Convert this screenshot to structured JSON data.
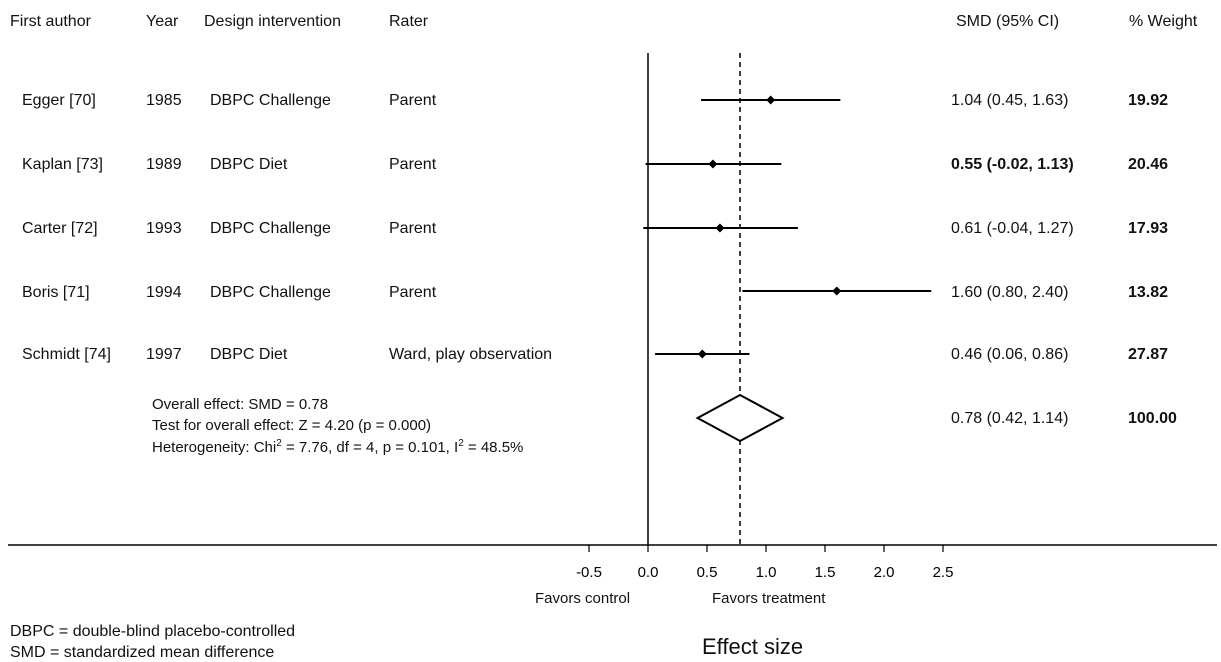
{
  "headers": {
    "author": "First author",
    "year": "Year",
    "design": "Design intervention",
    "rater": "Rater",
    "smd": "SMD  (95% CI)",
    "weight": "% Weight"
  },
  "rows": [
    {
      "author": "Egger [70]",
      "year": "1985",
      "design": "DBPC Challenge",
      "rater": "Parent",
      "ci_text": "1.04 (0.45, 1.63)",
      "weight": "19.92",
      "ci_bold": false
    },
    {
      "author": "Kaplan [73]",
      "year": "1989",
      "design": "DBPC Diet",
      "rater": "Parent",
      "ci_text": "0.55 (-0.02, 1.13)",
      "weight": "20.46",
      "ci_bold": true
    },
    {
      "author": "Carter [72]",
      "year": "1993",
      "design": "DBPC Challenge",
      "rater": "Parent",
      "ci_text": "0.61 (-0.04, 1.27)",
      "weight": "17.93",
      "ci_bold": false
    },
    {
      "author": "Boris [71]",
      "year": "1994",
      "design": "DBPC Challenge",
      "rater": "Parent",
      "ci_text": "1.60 (0.80, 2.40)",
      "weight": "13.82",
      "ci_bold": false
    },
    {
      "author": "Schmidt [74]",
      "year": "1997",
      "design": "DBPC Diet",
      "rater": "Ward, play observation",
      "ci_text": "0.46 (0.06, 0.86)",
      "weight": "27.87",
      "ci_bold": false
    }
  ],
  "overall": {
    "line1": "Overall  effect: SMD = 0.78",
    "line2": "Test for overall effect: Z = 4.20 (p = 0.000)",
    "line3_a": "Heterogeneity: Chi",
    "line3_sup1": "2",
    "line3_b": " = 7.76, df = 4, p = 0.101, I",
    "line3_sup2": "2",
    "line3_c": " = 48.5%",
    "ci_text": "0.78 (0.42, 1.14)",
    "weight": "100.00"
  },
  "axis": {
    "favors_control": "Favors control",
    "favors_treatment": "Favors treatment",
    "xlabel": "Effect size"
  },
  "footnotes": {
    "dbpc": "DBPC = double-blind placebo-controlled",
    "smd": "SMD =  standardized mean difference"
  },
  "chart_data": {
    "type": "forest",
    "xlabel": "Effect size",
    "xlim": [
      -0.5,
      2.5
    ],
    "xticks": [
      "-0.5",
      "0.0",
      "0.5",
      "1.0",
      "1.5",
      "2.0",
      "2.5"
    ],
    "xtick_values": [
      -0.5,
      0.0,
      0.5,
      1.0,
      1.5,
      2.0,
      2.5
    ],
    "reference_line": 0,
    "overall_line": 0.78,
    "studies": [
      {
        "label": "Egger [70]",
        "est": 1.04,
        "lo": 0.45,
        "hi": 1.63
      },
      {
        "label": "Kaplan [73]",
        "est": 0.55,
        "lo": -0.02,
        "hi": 1.13
      },
      {
        "label": "Carter [72]",
        "est": 0.61,
        "lo": -0.04,
        "hi": 1.27
      },
      {
        "label": "Boris [71]",
        "est": 1.6,
        "lo": 0.8,
        "hi": 2.4
      },
      {
        "label": "Schmidt [74]",
        "est": 0.46,
        "lo": 0.06,
        "hi": 0.86
      }
    ],
    "summary": {
      "est": 0.78,
      "lo": 0.42,
      "hi": 1.14
    }
  }
}
